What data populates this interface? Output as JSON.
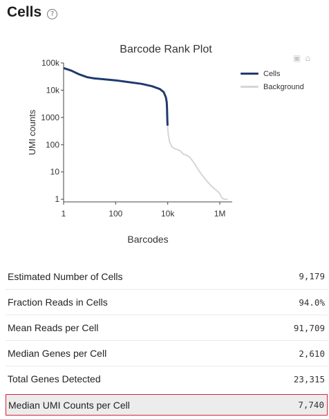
{
  "header": {
    "title": "Cells",
    "help_icon": "question-circle-icon"
  },
  "modebar": {
    "icons": [
      "camera-icon",
      "home-icon"
    ]
  },
  "chart_data": {
    "type": "line",
    "title": "Barcode Rank Plot",
    "xlabel": "Barcodes",
    "ylabel": "UMI counts",
    "x_scale": "log",
    "y_scale": "log",
    "xlim": [
      1,
      3000000
    ],
    "ylim": [
      0.8,
      100000
    ],
    "x_ticks": [
      1,
      100,
      10000,
      1000000
    ],
    "x_tick_labels": [
      "1",
      "100",
      "10k",
      "1M"
    ],
    "y_ticks": [
      1,
      10,
      100,
      1000,
      10000,
      100000
    ],
    "y_tick_labels": [
      "1",
      "10",
      "100",
      "1000",
      "10k",
      "100k"
    ],
    "grid": false,
    "legend_position": "right",
    "series": [
      {
        "name": "Cells",
        "color": "#1f3a6e",
        "x": [
          1,
          2,
          4,
          8,
          15,
          30,
          100,
          300,
          1000,
          2500,
          5000,
          7000,
          8500,
          9179,
          9400,
          9600,
          9800
        ],
        "y": [
          65000,
          52000,
          38000,
          30000,
          27000,
          25500,
          23000,
          20000,
          17000,
          14000,
          11000,
          8500,
          5500,
          3500,
          2000,
          1000,
          500
        ]
      },
      {
        "name": "Background",
        "color": "#d5d5d5",
        "x": [
          9800,
          10500,
          12000,
          15000,
          20000,
          30000,
          40000,
          50000,
          70000,
          100000,
          150000,
          200000,
          300000,
          450000,
          600000,
          800000,
          1000000,
          1200000,
          1500000,
          2000000
        ],
        "y": [
          500,
          230,
          120,
          80,
          70,
          60,
          45,
          42,
          35,
          22,
          12,
          8,
          5,
          3.2,
          2.5,
          2,
          1.6,
          1.1,
          1,
          1
        ]
      }
    ]
  },
  "metrics": [
    {
      "label": "Estimated Number of Cells",
      "value": "9,179"
    },
    {
      "label": "Fraction Reads in Cells",
      "value": "94.0%"
    },
    {
      "label": "Mean Reads per Cell",
      "value": "91,709"
    },
    {
      "label": "Median Genes per Cell",
      "value": "2,610"
    },
    {
      "label": "Total Genes Detected",
      "value": "23,315"
    },
    {
      "label": "Median UMI Counts per Cell",
      "value": "7,740"
    }
  ]
}
